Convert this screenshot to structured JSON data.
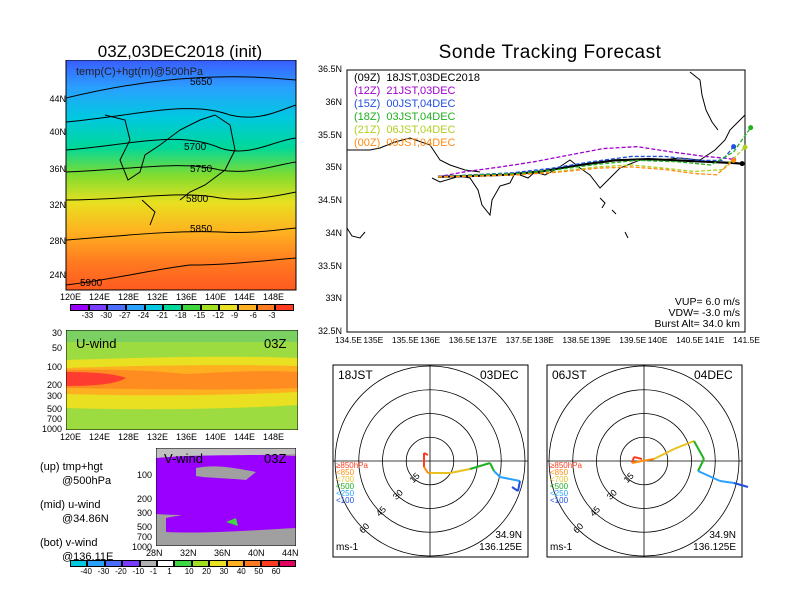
{
  "map_panel": {
    "title": "03Z,03DEC2018 (init)",
    "overlay_label": "temp(C)+hgt(m)@500hPa",
    "lat_ticks": [
      "44N",
      "40N",
      "36N",
      "32N",
      "28N",
      "24N"
    ],
    "lon_ticks": [
      "120E",
      "124E",
      "128E",
      "132E",
      "136E",
      "140E",
      "144E",
      "148E"
    ],
    "contour_labels": [
      "5650",
      "5700",
      "5750",
      "5800",
      "5850",
      "5900"
    ],
    "colorbar_labels": [
      "-33",
      "-30",
      "-27",
      "-24",
      "-21",
      "-18",
      "-15",
      "-12",
      "-9",
      "-6",
      "-3"
    ],
    "colorbar_colors": [
      "#9a00ff",
      "#7a3cff",
      "#4a6cff",
      "#2aa0ff",
      "#00c8e0",
      "#00d89a",
      "#40d840",
      "#a0e020",
      "#e8e020",
      "#ffb020",
      "#ff7a20",
      "#ff3c20"
    ]
  },
  "uwind_panel": {
    "label": "U-wind",
    "time": "03Z",
    "p_ticks": [
      "30",
      "50",
      "100",
      "200",
      "300",
      "500",
      "700",
      "1000"
    ],
    "lon_ticks": [
      "120E",
      "124E",
      "128E",
      "132E",
      "136E",
      "140E",
      "144E",
      "148E"
    ]
  },
  "vwind_panel": {
    "label": "V-wind",
    "time": "03Z",
    "p_ticks": [
      "100",
      "200",
      "300",
      "500",
      "700",
      "1000"
    ],
    "lat_ticks": [
      "28N",
      "32N",
      "36N",
      "40N",
      "44N"
    ],
    "colorbar_labels": [
      "-40",
      "-30",
      "-20",
      "-10",
      "-1",
      "1",
      "10",
      "20",
      "30",
      "40",
      "50",
      "60"
    ],
    "colorbar_colors": [
      "#00c8e0",
      "#2aa0ff",
      "#4a6cff",
      "#7a3cff",
      "#b0b0b0",
      "#ffffff",
      "#40d840",
      "#a0e020",
      "#e8e020",
      "#ffb020",
      "#ff7a20",
      "#ff3c20",
      "#e00060"
    ]
  },
  "legend_notes": [
    {
      "line1": "(up) tmp+hgt",
      "line2": "@500hPa"
    },
    {
      "line1": "(mid) u-wind",
      "line2": "@34.86N"
    },
    {
      "line1": "(bot) v-wind",
      "line2": "@136.11E"
    }
  ],
  "tracking_panel": {
    "title": "Sonde Tracking Forecast",
    "lat_ticks": [
      "36.5N",
      "36N",
      "35.5N",
      "35N",
      "34.5N",
      "34N",
      "33.5N",
      "33N",
      "32.5N"
    ],
    "lon_ticks": [
      "134.5E",
      "135E",
      "135.5E",
      "136E",
      "136.5E",
      "137E",
      "137.5E",
      "138E",
      "138.5E",
      "139E",
      "139.5E",
      "140E",
      "140.5E",
      "141E",
      "141.5E"
    ],
    "legend": [
      {
        "text": "(09Z)  18JST,03DEC2018",
        "color": "#000000"
      },
      {
        "text": "(12Z)  21JST,03DEC",
        "color": "#a000d0"
      },
      {
        "text": "(15Z)  00JST,04DEC",
        "color": "#2050e0"
      },
      {
        "text": "(18Z)  03JST,04DEC",
        "color": "#20b020"
      },
      {
        "text": "(21Z)  06JST,04DEC",
        "color": "#b0d020"
      },
      {
        "text": "(00Z)  09JST,04DEC",
        "color": "#ff8c10"
      }
    ],
    "params": [
      "VUP=  6.0  m/s",
      "VDW= -3.0  m/s",
      "Burst Alt=  34.0  km"
    ]
  },
  "polar_panels": [
    {
      "left_label": "18JST",
      "right_label": "03DEC",
      "units": "ms-1",
      "lat": "34.9N",
      "lon": "136.125E"
    },
    {
      "left_label": "06JST",
      "right_label": "04DEC",
      "units": "ms-1",
      "lat": "34.9N",
      "lon": "136.125E"
    }
  ],
  "polar_ring_labels": [
    "15",
    "30",
    "45",
    "60"
  ],
  "polar_pressure_legend": [
    "≥850hPa",
    "<850",
    "<700",
    "<500",
    "<250",
    "<100"
  ],
  "polar_pressure_colors": [
    "#ff3c20",
    "#ff8c10",
    "#e8c020",
    "#20b020",
    "#2aa0ff",
    "#2050e0"
  ],
  "chart_data": {
    "type": "line",
    "title": "Sonde Tracking Forecast",
    "xlabel": "",
    "ylabel": "",
    "xlim": [
      134.5,
      141.5
    ],
    "ylim": [
      32.5,
      36.5
    ],
    "series": [
      {
        "name": "(09Z) 18JST,03DEC2018",
        "x": [
          136.1,
          136.6,
          137.3,
          137.9,
          138.6,
          139.2,
          139.8,
          140.3,
          140.8,
          141.3,
          141.45
        ],
        "y": [
          34.87,
          34.88,
          34.9,
          34.95,
          35.05,
          35.12,
          35.14,
          35.12,
          35.1,
          35.08,
          35.07
        ]
      },
      {
        "name": "(12Z) 21JST,03DEC",
        "x": [
          136.1,
          136.6,
          137.2,
          137.8,
          138.4,
          139.0,
          139.6,
          140.2,
          140.8,
          141.2,
          141.3
        ],
        "y": [
          34.87,
          34.95,
          35.02,
          35.1,
          35.2,
          35.3,
          35.33,
          35.25,
          35.18,
          35.15,
          35.13
        ]
      },
      {
        "name": "(15Z) 00JST,04DEC",
        "x": [
          136.1,
          136.7,
          137.4,
          138.1,
          138.8,
          139.5,
          140.1,
          140.7,
          141.1,
          141.3
        ],
        "y": [
          34.87,
          34.9,
          34.93,
          35.0,
          35.1,
          35.18,
          35.18,
          35.12,
          35.12,
          35.33
        ]
      },
      {
        "name": "(18Z) 03JST,04DEC",
        "x": [
          136.1,
          136.8,
          137.5,
          138.2,
          138.9,
          139.6,
          140.3,
          140.9,
          141.3,
          141.6
        ],
        "y": [
          34.87,
          34.9,
          34.92,
          34.98,
          35.06,
          35.12,
          35.1,
          35.05,
          35.25,
          35.62
        ]
      },
      {
        "name": "(21Z) 06JST,04DEC",
        "x": [
          136.1,
          136.8,
          137.5,
          138.2,
          138.9,
          139.5,
          140.1,
          140.6,
          141.1,
          141.5
        ],
        "y": [
          34.87,
          34.88,
          34.9,
          34.95,
          35.02,
          35.05,
          35.0,
          34.95,
          34.98,
          35.32
        ]
      },
      {
        "name": "(00Z) 09JST,04DEC",
        "x": [
          136.1,
          136.8,
          137.5,
          138.2,
          138.9,
          139.5,
          140.1,
          140.6,
          141.0,
          141.3
        ],
        "y": [
          34.87,
          34.88,
          34.9,
          34.94,
          35.0,
          35.02,
          34.98,
          34.92,
          34.9,
          35.12
        ]
      }
    ],
    "grid": false,
    "legend_position": "top-left"
  }
}
